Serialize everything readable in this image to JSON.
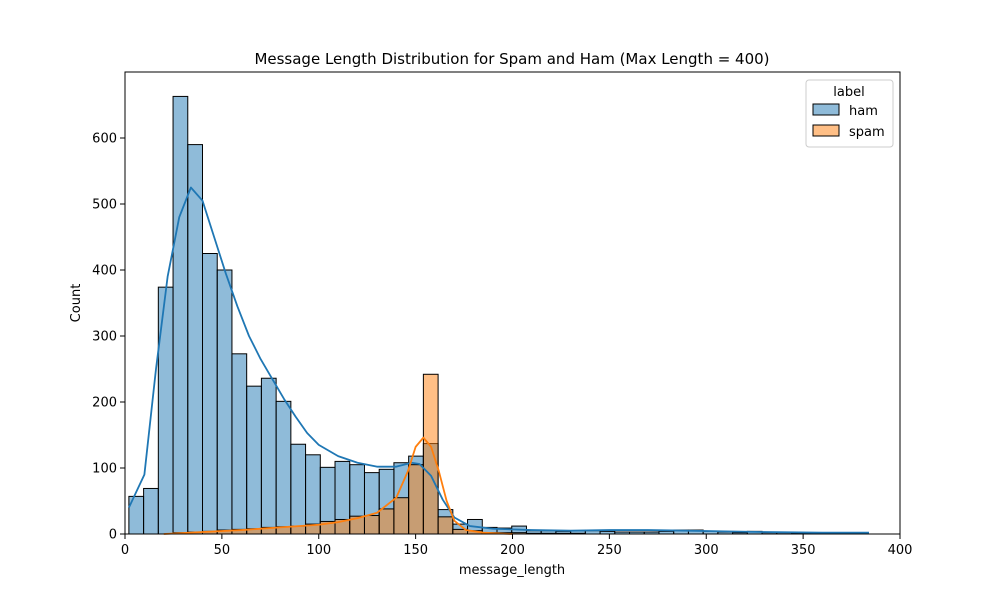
{
  "chart_data": {
    "type": "bar",
    "title": "Message Length Distribution for Spam and Ham (Max Length = 400)",
    "xlabel": "message_length",
    "ylabel": "Count",
    "xlim": [
      0,
      400
    ],
    "ylim": [
      0,
      700
    ],
    "x_ticks": [
      0,
      50,
      100,
      150,
      200,
      250,
      300,
      350,
      400
    ],
    "y_ticks": [
      0,
      100,
      200,
      300,
      400,
      500,
      600
    ],
    "bin_start": 2,
    "bin_width": 7.6,
    "legend": {
      "title": "label",
      "position": "top-right"
    },
    "series": [
      {
        "name": "ham",
        "color": "#1f77b4",
        "values": [
          57,
          69,
          374,
          663,
          590,
          425,
          400,
          273,
          224,
          236,
          201,
          136,
          120,
          101,
          110,
          105,
          93,
          98,
          108,
          118,
          137,
          37,
          15,
          22,
          10,
          9,
          12,
          5,
          5,
          4,
          5,
          5,
          4,
          3,
          3,
          3,
          4,
          6,
          6,
          4,
          3,
          2,
          4,
          2,
          2,
          1,
          1,
          1,
          1,
          1
        ]
      },
      {
        "name": "spam",
        "color": "#ff7f0e",
        "values": [
          0,
          0,
          0,
          2,
          3,
          4,
          6,
          7,
          8,
          10,
          11,
          12,
          15,
          19,
          22,
          27,
          28,
          38,
          55,
          105,
          242,
          26,
          7,
          5,
          2,
          2,
          2,
          1,
          1,
          1,
          1,
          0,
          0,
          0,
          0,
          0,
          0,
          0,
          0,
          0,
          0,
          0,
          0,
          0,
          0,
          0,
          0,
          0,
          0,
          0
        ]
      }
    ],
    "kde": [
      {
        "series": "ham",
        "points": [
          [
            2,
            40
          ],
          [
            10,
            90
          ],
          [
            16,
            250
          ],
          [
            22,
            390
          ],
          [
            28,
            480
          ],
          [
            34,
            525
          ],
          [
            40,
            505
          ],
          [
            46,
            450
          ],
          [
            52,
            395
          ],
          [
            58,
            345
          ],
          [
            64,
            300
          ],
          [
            70,
            265
          ],
          [
            76,
            235
          ],
          [
            82,
            205
          ],
          [
            88,
            178
          ],
          [
            94,
            153
          ],
          [
            100,
            135
          ],
          [
            110,
            118
          ],
          [
            120,
            108
          ],
          [
            130,
            102
          ],
          [
            140,
            102
          ],
          [
            148,
            108
          ],
          [
            152,
            106
          ],
          [
            158,
            88
          ],
          [
            164,
            52
          ],
          [
            170,
            25
          ],
          [
            178,
            12
          ],
          [
            190,
            8
          ],
          [
            210,
            6
          ],
          [
            230,
            5
          ],
          [
            250,
            6
          ],
          [
            270,
            6
          ],
          [
            290,
            5
          ],
          [
            310,
            4
          ],
          [
            330,
            3
          ],
          [
            360,
            2
          ],
          [
            384,
            2
          ]
        ]
      },
      {
        "series": "spam",
        "points": [
          [
            20,
            0
          ],
          [
            40,
            3
          ],
          [
            60,
            6
          ],
          [
            80,
            10
          ],
          [
            100,
            14
          ],
          [
            110,
            18
          ],
          [
            120,
            24
          ],
          [
            130,
            32
          ],
          [
            140,
            55
          ],
          [
            146,
            95
          ],
          [
            150,
            132
          ],
          [
            154,
            146
          ],
          [
            158,
            132
          ],
          [
            162,
            95
          ],
          [
            166,
            50
          ],
          [
            170,
            20
          ],
          [
            176,
            6
          ],
          [
            185,
            2
          ],
          [
            200,
            0
          ]
        ]
      }
    ]
  }
}
